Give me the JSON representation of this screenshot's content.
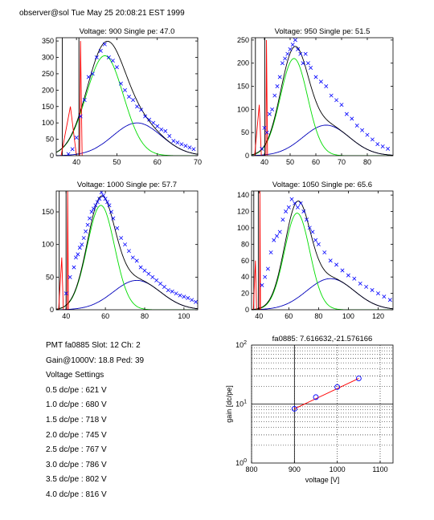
{
  "header": "observer@sol  Tue May 25 20:08:21 EST 1999",
  "info": {
    "pmt_line": "PMT fa0885 Slot: 12 Ch: 2",
    "gain_line": "Gain@1000V: 18.8 Ped: 39",
    "settings_title": "Voltage Settings",
    "settings": [
      "0.5 dc/pe : 621 V",
      "1.0 dc/pe : 680 V",
      "1.5 dc/pe : 718 V",
      "2.0 dc/pe : 745 V",
      "2.5 dc/pe : 767 V",
      "3.0 dc/pe : 786 V",
      "3.5 dc/pe : 802 V",
      "4.0 dc/pe : 816 V"
    ]
  },
  "colors": {
    "data_marker": "#0000ff",
    "total_fit": "#000000",
    "single_pe_fit": "#00dd00",
    "double_pe_fit": "#0000bb",
    "pedestal_fit": "#ff0000",
    "gain_fit": "#ff0000"
  },
  "chart_data": [
    {
      "type": "scatter",
      "title": "Voltage: 900 Single pe: 47.0",
      "xlim": [
        35,
        70
      ],
      "ylim": [
        0,
        360
      ],
      "xticks": [
        40,
        50,
        60,
        70
      ],
      "yticks": [
        0,
        50,
        100,
        150,
        200,
        250,
        300,
        350
      ],
      "pedestal": {
        "x": [
          36.5,
          38.5,
          40,
          41.0,
          41.4
        ],
        "y": [
          300,
          150,
          0,
          350,
          0
        ]
      },
      "fit": {
        "mu1": 47.0,
        "sigma1": 4.6,
        "amp1": 305,
        "mu2": 55.0,
        "sigma2": 6.0,
        "amp2": 100
      },
      "series": [
        {
          "x": [
            38,
            39,
            40,
            41,
            42,
            43,
            44,
            45,
            46,
            47,
            48,
            49,
            50,
            51,
            52,
            53,
            54,
            55,
            56,
            57,
            58,
            59,
            60,
            61,
            62,
            63,
            64,
            65,
            66,
            67,
            68,
            69
          ],
          "y": [
            5,
            20,
            55,
            120,
            170,
            240,
            250,
            300,
            320,
            340,
            300,
            290,
            270,
            220,
            200,
            180,
            170,
            150,
            140,
            120,
            110,
            100,
            90,
            80,
            75,
            60,
            45,
            40,
            35,
            30,
            25,
            20
          ]
        }
      ]
    },
    {
      "type": "scatter",
      "title": "Voltage: 950 Single pe: 51.5",
      "xlim": [
        35,
        90
      ],
      "ylim": [
        0,
        255
      ],
      "xticks": [
        40,
        50,
        60,
        70,
        80
      ],
      "yticks": [
        0,
        50,
        100,
        150,
        200,
        250
      ],
      "pedestal": {
        "x": [
          36.5,
          38.0,
          38.8,
          40.8,
          41.2
        ],
        "y": [
          230,
          110,
          0,
          250,
          0
        ]
      },
      "fit": {
        "mu1": 51.5,
        "sigma1": 5.3,
        "amp1": 210,
        "mu2": 64.0,
        "sigma2": 9.0,
        "amp2": 66
      },
      "series": [
        {
          "x": [
            39,
            40,
            41,
            42,
            43,
            44,
            45,
            46,
            47,
            48,
            49,
            50,
            51,
            52,
            53,
            54,
            55,
            56,
            57,
            58,
            60,
            62,
            64,
            66,
            68,
            70,
            72,
            74,
            76,
            78,
            80,
            82,
            84,
            86,
            88
          ],
          "y": [
            15,
            60,
            50,
            90,
            100,
            130,
            150,
            170,
            200,
            210,
            220,
            230,
            240,
            250,
            230,
            220,
            200,
            220,
            200,
            190,
            170,
            160,
            150,
            130,
            120,
            110,
            90,
            80,
            65,
            55,
            45,
            35,
            25,
            20,
            15
          ]
        }
      ]
    },
    {
      "type": "scatter",
      "title": "Voltage: 1000 Single pe: 57.7",
      "xlim": [
        35,
        107
      ],
      "ylim": [
        0,
        182
      ],
      "xticks": [
        40,
        60,
        80,
        100
      ],
      "yticks": [
        0,
        50,
        100,
        150
      ],
      "pedestal": {
        "x": [
          36.5,
          37.8,
          38.6,
          40.8,
          41.2
        ],
        "y": [
          140,
          80,
          0,
          182,
          0
        ]
      },
      "fit": {
        "mu1": 57.7,
        "sigma1": 7.0,
        "amp1": 160,
        "mu2": 76.0,
        "sigma2": 12.0,
        "amp2": 45
      },
      "series": [
        {
          "x": [
            40,
            42,
            44,
            45,
            46,
            47,
            48,
            49,
            50,
            51,
            52,
            53,
            54,
            55,
            56,
            57,
            58,
            59,
            60,
            61,
            62,
            63,
            64,
            66,
            68,
            70,
            72,
            74,
            76,
            78,
            80,
            82,
            84,
            86,
            88,
            90,
            92,
            94,
            96,
            98,
            100,
            102,
            104,
            106
          ],
          "y": [
            25,
            50,
            65,
            80,
            85,
            95,
            100,
            110,
            120,
            130,
            140,
            150,
            155,
            160,
            165,
            170,
            180,
            175,
            170,
            165,
            160,
            150,
            140,
            125,
            110,
            100,
            90,
            80,
            75,
            65,
            60,
            55,
            50,
            45,
            40,
            35,
            30,
            28,
            25,
            22,
            20,
            18,
            15,
            12
          ]
        }
      ]
    },
    {
      "type": "scatter",
      "title": "Voltage: 1050 Single pe: 65.6",
      "xlim": [
        35,
        130
      ],
      "ylim": [
        0,
        145
      ],
      "xticks": [
        40,
        60,
        80,
        100,
        120
      ],
      "yticks": [
        0,
        20,
        40,
        60,
        80,
        100,
        120,
        140
      ],
      "pedestal": {
        "x": [
          36.5,
          37.6,
          38.4,
          40.6,
          41.0
        ],
        "y": [
          120,
          60,
          0,
          145,
          0
        ]
      },
      "fit": {
        "mu1": 65.6,
        "sigma1": 8.5,
        "amp1": 118,
        "mu2": 88.0,
        "sigma2": 16.0,
        "amp2": 38
      },
      "series": [
        {
          "x": [
            42,
            44,
            46,
            48,
            50,
            52,
            54,
            56,
            58,
            60,
            62,
            64,
            66,
            68,
            70,
            72,
            74,
            76,
            78,
            80,
            84,
            88,
            92,
            96,
            100,
            104,
            108,
            112,
            116,
            120,
            124,
            128
          ],
          "y": [
            30,
            40,
            50,
            70,
            85,
            90,
            95,
            110,
            120,
            125,
            135,
            130,
            125,
            130,
            120,
            110,
            100,
            95,
            85,
            80,
            70,
            60,
            55,
            48,
            42,
            38,
            32,
            28,
            24,
            20,
            16,
            12
          ]
        }
      ]
    },
    {
      "type": "line",
      "title": "fa0885: 7.616632,-21.576166",
      "xlabel": "voltage [V]",
      "ylabel": "gain [dc/pe]",
      "xlim": [
        800,
        1130
      ],
      "ylim": [
        1,
        100
      ],
      "yscale": "log",
      "xticks": [
        800,
        900,
        1000,
        1100
      ],
      "yticks": [
        1,
        10,
        100
      ],
      "ytick_labels": [
        "10^0",
        "10^1",
        "10^2"
      ],
      "grid": true,
      "series": [
        {
          "x": [
            900,
            950,
            1000,
            1050
          ],
          "y": [
            8.3,
            13.1,
            19.4,
            27.2
          ],
          "marker": "o"
        }
      ],
      "fit_line": {
        "x": [
          900,
          1050
        ],
        "y": [
          8.3,
          27.2
        ]
      }
    }
  ]
}
